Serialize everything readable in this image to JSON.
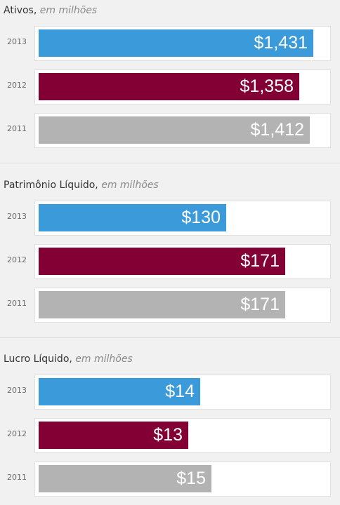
{
  "colors": {
    "2013": "#3a9ada",
    "2012": "#820033",
    "2011": "#b3b3b3"
  },
  "chart_data": [
    {
      "type": "bar",
      "title": "Ativos,",
      "subtitle": "em milhões",
      "categories": [
        "2013",
        "2012",
        "2011"
      ],
      "values": [
        1431,
        1358,
        1412
      ],
      "labels": [
        "$1,431",
        "$1,358",
        "$1,412"
      ],
      "xlim": [
        0,
        1500
      ]
    },
    {
      "type": "bar",
      "title": "Patrimônio Líquido,",
      "subtitle": "em milhões",
      "categories": [
        "2013",
        "2012",
        "2011"
      ],
      "values": [
        130,
        171,
        171
      ],
      "labels": [
        "$130",
        "$171",
        "$171"
      ],
      "xlim": [
        0,
        200
      ]
    },
    {
      "type": "bar",
      "title": "Lucro Líquido,",
      "subtitle": "em milhões",
      "categories": [
        "2013",
        "2012",
        "2011"
      ],
      "values": [
        14,
        13,
        15
      ],
      "labels": [
        "$14",
        "$13",
        "$15"
      ],
      "xlim": [
        0,
        25
      ]
    }
  ]
}
